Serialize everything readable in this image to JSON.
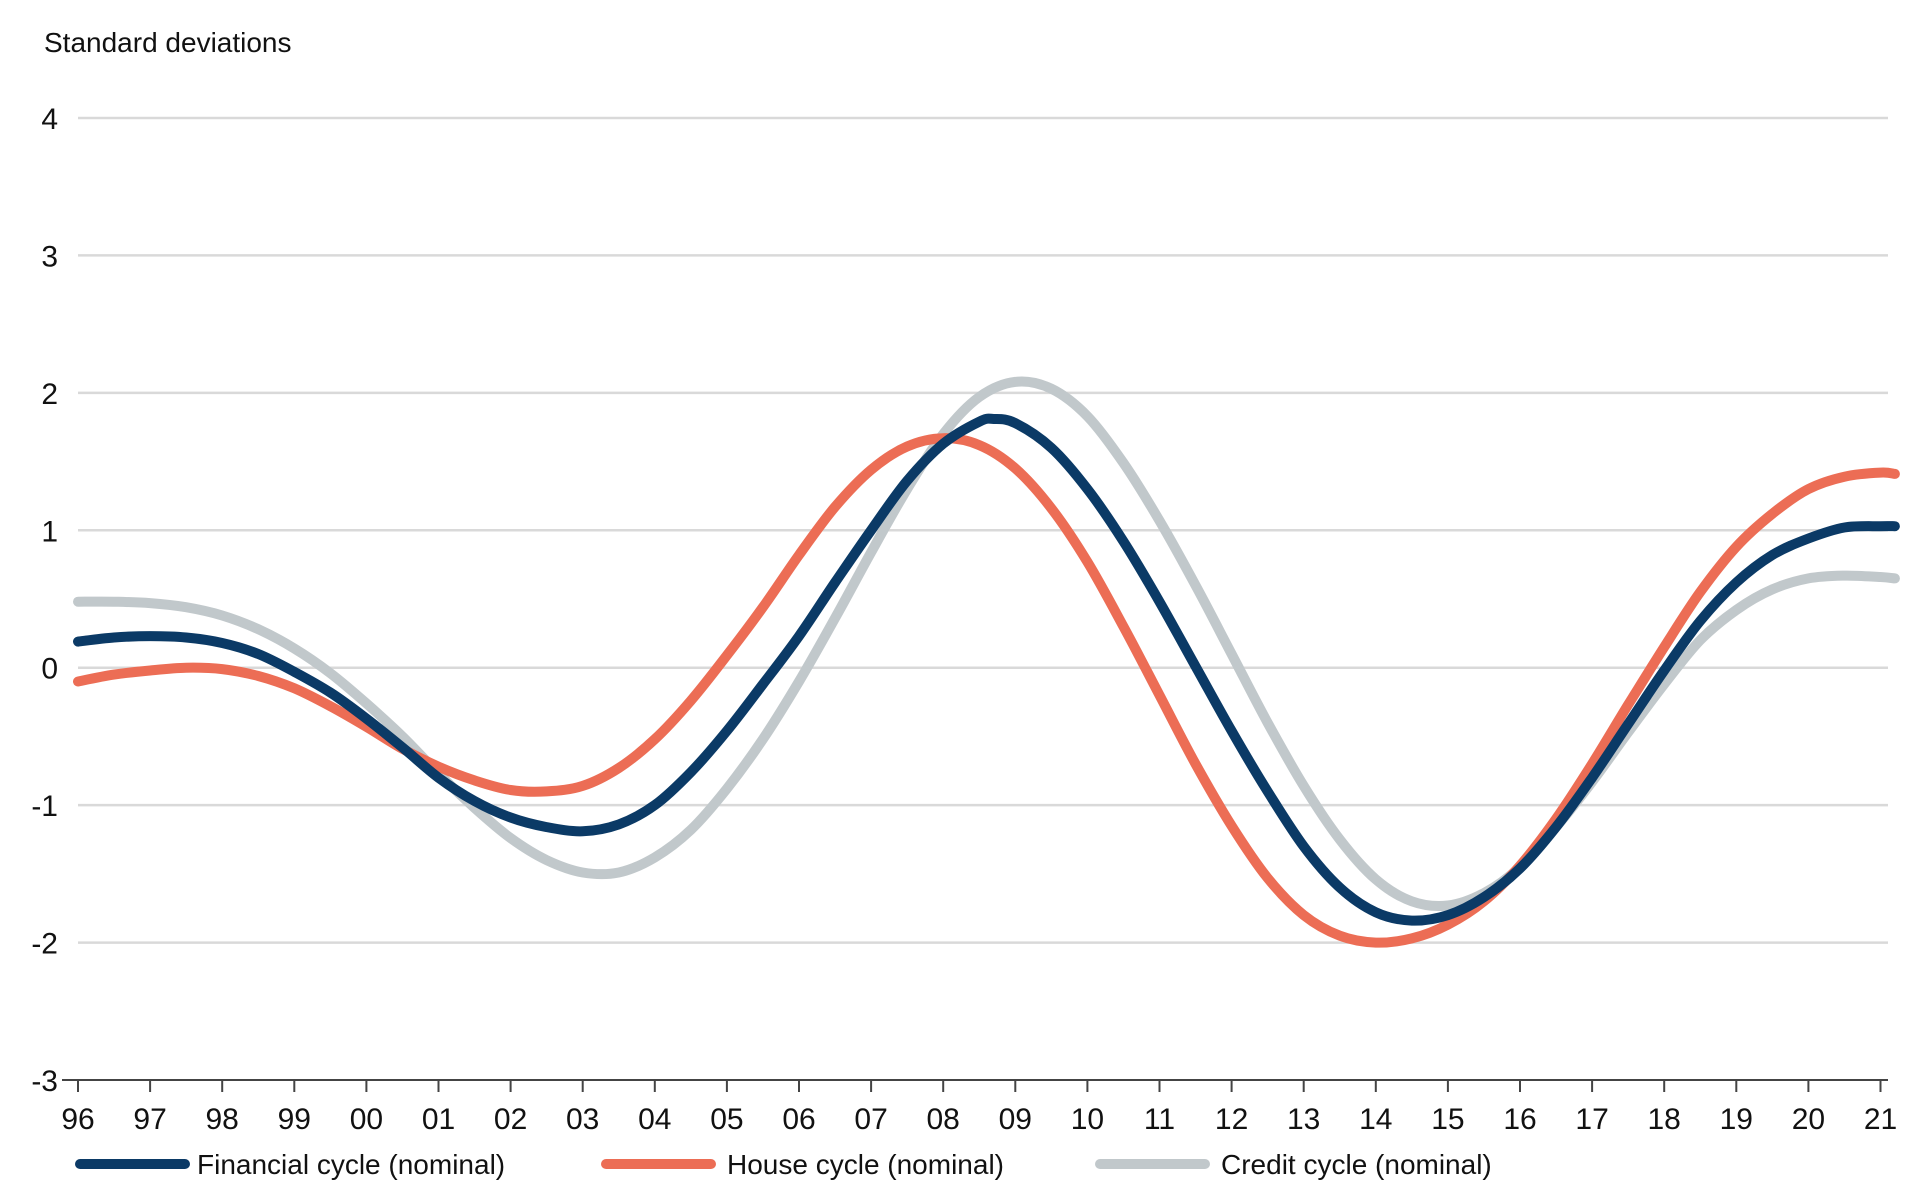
{
  "chart_data": {
    "type": "line",
    "ylabel": "Standard deviations",
    "ylim": [
      -3,
      4
    ],
    "yticks": [
      4,
      3,
      2,
      1,
      0,
      -1,
      -2,
      -3
    ],
    "y_tick_labels": [
      "4",
      "3",
      "2",
      "1",
      "0",
      "-1",
      "-2",
      "-3"
    ],
    "xlim": [
      1996,
      2021.2
    ],
    "x_tick_values": [
      1996,
      1997,
      1998,
      1999,
      2000,
      2001,
      2002,
      2003,
      2004,
      2005,
      2006,
      2007,
      2008,
      2009,
      2010,
      2011,
      2012,
      2013,
      2014,
      2015,
      2016,
      2017,
      2018,
      2019,
      2020,
      2021
    ],
    "x_tick_labels": [
      "96",
      "97",
      "98",
      "99",
      "00",
      "01",
      "02",
      "03",
      "04",
      "05",
      "06",
      "07",
      "08",
      "09",
      "10",
      "11",
      "12",
      "13",
      "14",
      "15",
      "16",
      "17",
      "18",
      "19",
      "20",
      "21"
    ],
    "grid": true,
    "legend_placement": "bottom",
    "series": [
      {
        "name": "Financial cycle (nominal)",
        "color": "#0b3a66",
        "points": [
          [
            1996.0,
            0.19
          ],
          [
            1996.5,
            0.22
          ],
          [
            1997.0,
            0.23
          ],
          [
            1997.5,
            0.22
          ],
          [
            1998.0,
            0.18
          ],
          [
            1998.5,
            0.1
          ],
          [
            1999.0,
            -0.03
          ],
          [
            1999.5,
            -0.18
          ],
          [
            2000.0,
            -0.37
          ],
          [
            2000.5,
            -0.58
          ],
          [
            2001.0,
            -0.8
          ],
          [
            2001.5,
            -0.97
          ],
          [
            2002.0,
            -1.09
          ],
          [
            2002.5,
            -1.16
          ],
          [
            2003.0,
            -1.19
          ],
          [
            2003.5,
            -1.14
          ],
          [
            2004.0,
            -1.0
          ],
          [
            2004.5,
            -0.76
          ],
          [
            2005.0,
            -0.46
          ],
          [
            2005.5,
            -0.12
          ],
          [
            2006.0,
            0.23
          ],
          [
            2006.5,
            0.62
          ],
          [
            2007.0,
            1.0
          ],
          [
            2007.5,
            1.36
          ],
          [
            2008.0,
            1.63
          ],
          [
            2008.5,
            1.79
          ],
          [
            2008.7,
            1.81
          ],
          [
            2009.0,
            1.78
          ],
          [
            2009.5,
            1.6
          ],
          [
            2010.0,
            1.3
          ],
          [
            2010.5,
            0.92
          ],
          [
            2011.0,
            0.48
          ],
          [
            2011.5,
            0.01
          ],
          [
            2012.0,
            -0.46
          ],
          [
            2012.5,
            -0.9
          ],
          [
            2013.0,
            -1.3
          ],
          [
            2013.5,
            -1.6
          ],
          [
            2014.0,
            -1.78
          ],
          [
            2014.5,
            -1.84
          ],
          [
            2015.0,
            -1.8
          ],
          [
            2015.5,
            -1.67
          ],
          [
            2016.0,
            -1.46
          ],
          [
            2016.5,
            -1.16
          ],
          [
            2017.0,
            -0.8
          ],
          [
            2017.5,
            -0.41
          ],
          [
            2018.0,
            -0.02
          ],
          [
            2018.5,
            0.34
          ],
          [
            2019.0,
            0.62
          ],
          [
            2019.5,
            0.82
          ],
          [
            2020.0,
            0.94
          ],
          [
            2020.5,
            1.02
          ],
          [
            2021.0,
            1.03
          ],
          [
            2021.2,
            1.03
          ]
        ]
      },
      {
        "name": "House cycle (nominal)",
        "color": "#ec6d55",
        "points": [
          [
            1996.0,
            -0.1
          ],
          [
            1996.5,
            -0.05
          ],
          [
            1997.0,
            -0.02
          ],
          [
            1997.5,
            0.0
          ],
          [
            1998.0,
            -0.01
          ],
          [
            1998.5,
            -0.06
          ],
          [
            1999.0,
            -0.15
          ],
          [
            1999.5,
            -0.28
          ],
          [
            2000.0,
            -0.43
          ],
          [
            2000.5,
            -0.59
          ],
          [
            2001.0,
            -0.72
          ],
          [
            2001.5,
            -0.82
          ],
          [
            2002.0,
            -0.89
          ],
          [
            2002.5,
            -0.9
          ],
          [
            2003.0,
            -0.86
          ],
          [
            2003.5,
            -0.73
          ],
          [
            2004.0,
            -0.52
          ],
          [
            2004.5,
            -0.24
          ],
          [
            2005.0,
            0.09
          ],
          [
            2005.5,
            0.44
          ],
          [
            2006.0,
            0.82
          ],
          [
            2006.5,
            1.17
          ],
          [
            2007.0,
            1.44
          ],
          [
            2007.5,
            1.61
          ],
          [
            2008.0,
            1.67
          ],
          [
            2008.5,
            1.62
          ],
          [
            2009.0,
            1.45
          ],
          [
            2009.5,
            1.16
          ],
          [
            2010.0,
            0.77
          ],
          [
            2010.5,
            0.3
          ],
          [
            2011.0,
            -0.2
          ],
          [
            2011.5,
            -0.7
          ],
          [
            2012.0,
            -1.15
          ],
          [
            2012.5,
            -1.53
          ],
          [
            2013.0,
            -1.8
          ],
          [
            2013.5,
            -1.95
          ],
          [
            2014.0,
            -2.0
          ],
          [
            2014.5,
            -1.97
          ],
          [
            2015.0,
            -1.87
          ],
          [
            2015.5,
            -1.7
          ],
          [
            2016.0,
            -1.44
          ],
          [
            2016.5,
            -1.1
          ],
          [
            2017.0,
            -0.7
          ],
          [
            2017.5,
            -0.27
          ],
          [
            2018.0,
            0.15
          ],
          [
            2018.5,
            0.55
          ],
          [
            2019.0,
            0.88
          ],
          [
            2019.5,
            1.12
          ],
          [
            2020.0,
            1.3
          ],
          [
            2020.5,
            1.39
          ],
          [
            2021.0,
            1.42
          ],
          [
            2021.2,
            1.41
          ]
        ]
      },
      {
        "name": "Credit cycle (nominal)",
        "color": "#c1c8cb",
        "points": [
          [
            1996.0,
            0.48
          ],
          [
            1996.5,
            0.48
          ],
          [
            1997.0,
            0.47
          ],
          [
            1997.5,
            0.44
          ],
          [
            1998.0,
            0.38
          ],
          [
            1998.5,
            0.28
          ],
          [
            1999.0,
            0.14
          ],
          [
            1999.5,
            -0.04
          ],
          [
            2000.0,
            -0.26
          ],
          [
            2000.5,
            -0.5
          ],
          [
            2001.0,
            -0.77
          ],
          [
            2001.5,
            -1.02
          ],
          [
            2002.0,
            -1.24
          ],
          [
            2002.5,
            -1.4
          ],
          [
            2003.0,
            -1.49
          ],
          [
            2003.5,
            -1.49
          ],
          [
            2004.0,
            -1.38
          ],
          [
            2004.5,
            -1.18
          ],
          [
            2005.0,
            -0.88
          ],
          [
            2005.5,
            -0.52
          ],
          [
            2006.0,
            -0.1
          ],
          [
            2006.5,
            0.36
          ],
          [
            2007.0,
            0.84
          ],
          [
            2007.5,
            1.3
          ],
          [
            2008.0,
            1.7
          ],
          [
            2008.5,
            1.97
          ],
          [
            2009.0,
            2.08
          ],
          [
            2009.5,
            2.03
          ],
          [
            2010.0,
            1.83
          ],
          [
            2010.5,
            1.49
          ],
          [
            2011.0,
            1.07
          ],
          [
            2011.5,
            0.6
          ],
          [
            2012.0,
            0.1
          ],
          [
            2012.5,
            -0.4
          ],
          [
            2013.0,
            -0.86
          ],
          [
            2013.5,
            -1.25
          ],
          [
            2014.0,
            -1.54
          ],
          [
            2014.5,
            -1.7
          ],
          [
            2015.0,
            -1.73
          ],
          [
            2015.5,
            -1.64
          ],
          [
            2016.0,
            -1.45
          ],
          [
            2016.5,
            -1.16
          ],
          [
            2017.0,
            -0.83
          ],
          [
            2017.5,
            -0.47
          ],
          [
            2018.0,
            -0.12
          ],
          [
            2018.5,
            0.2
          ],
          [
            2019.0,
            0.42
          ],
          [
            2019.5,
            0.57
          ],
          [
            2020.0,
            0.65
          ],
          [
            2020.5,
            0.67
          ],
          [
            2021.0,
            0.66
          ],
          [
            2021.2,
            0.65
          ]
        ]
      }
    ]
  }
}
